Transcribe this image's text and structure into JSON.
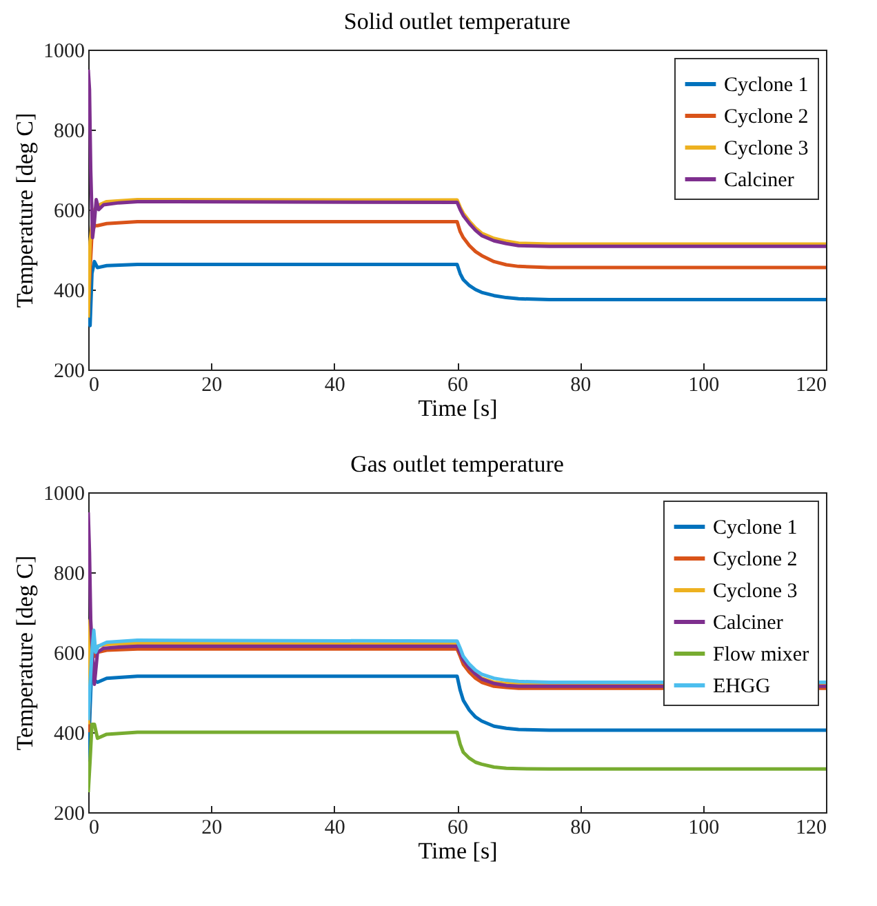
{
  "chart_data": [
    {
      "type": "line",
      "title": "Solid outlet temperature",
      "xlabel": "Time [s]",
      "ylabel": "Temperature [deg C]",
      "xlim": [
        0,
        120
      ],
      "ylim": [
        200,
        1000
      ],
      "xticks": [
        0,
        20,
        40,
        60,
        80,
        100,
        120
      ],
      "yticks": [
        200,
        400,
        600,
        800,
        1000
      ],
      "legend": "top right",
      "series": [
        {
          "name": "Cyclone 1",
          "color": "#0072bd",
          "x": [
            0,
            0.3,
            0.6,
            1,
            1.5,
            3,
            8,
            60,
            60.5,
            61,
            62,
            63,
            64,
            66,
            68,
            70,
            75,
            120
          ],
          "values": [
            330,
            310,
            440,
            470,
            455,
            460,
            463,
            463,
            440,
            425,
            410,
            400,
            393,
            385,
            380,
            377,
            375,
            375
          ]
        },
        {
          "name": "Cyclone 2",
          "color": "#d95319",
          "x": [
            0,
            0.3,
            0.6,
            1,
            1.5,
            3,
            8,
            60,
            60.5,
            61,
            62,
            63,
            64,
            66,
            68,
            70,
            75,
            120
          ],
          "values": [
            340,
            450,
            540,
            560,
            560,
            565,
            570,
            570,
            545,
            530,
            510,
            495,
            485,
            470,
            462,
            458,
            455,
            455
          ]
        },
        {
          "name": "Cyclone 3",
          "color": "#edb120",
          "x": [
            0,
            0.3,
            0.6,
            1,
            1.5,
            3,
            8,
            60,
            60.5,
            61,
            62,
            63,
            64,
            66,
            68,
            70,
            75,
            120
          ],
          "values": [
            330,
            520,
            560,
            600,
            610,
            620,
            625,
            624,
            606,
            591,
            571,
            554,
            541,
            528,
            521,
            516,
            514,
            514
          ]
        },
        {
          "name": "Calciner",
          "color": "#7e2f8e",
          "x": [
            0,
            0.2,
            0.4,
            0.7,
            1,
            1.3,
            1.7,
            2.5,
            5,
            8,
            60,
            60.5,
            61,
            62,
            63,
            64,
            66,
            68,
            70,
            75,
            120
          ],
          "values": [
            950,
            900,
            700,
            530,
            570,
            625,
            600,
            612,
            617,
            620,
            618,
            600,
            585,
            565,
            548,
            535,
            522,
            515,
            510,
            508,
            508
          ]
        }
      ]
    },
    {
      "type": "line",
      "title": "Gas outlet temperature",
      "xlabel": "Time [s]",
      "ylabel": "Temperature [deg C]",
      "xlim": [
        0,
        120
      ],
      "ylim": [
        200,
        1000
      ],
      "xticks": [
        0,
        20,
        40,
        60,
        80,
        100,
        120
      ],
      "yticks": [
        200,
        400,
        600,
        800,
        1000
      ],
      "legend": "top right",
      "series": [
        {
          "name": "Cyclone 1",
          "color": "#0072bd",
          "x": [
            0,
            0.3,
            0.6,
            1,
            1.5,
            3,
            8,
            60,
            60.5,
            61,
            62,
            63,
            64,
            66,
            68,
            70,
            75,
            120
          ],
          "values": [
            330,
            460,
            580,
            530,
            525,
            535,
            540,
            540,
            505,
            480,
            455,
            438,
            428,
            415,
            410,
            407,
            405,
            405
          ]
        },
        {
          "name": "Cyclone 2",
          "color": "#d95319",
          "x": [
            0,
            0.3,
            0.6,
            1,
            1.5,
            3,
            8,
            60,
            60.5,
            61,
            62,
            63,
            64,
            66,
            68,
            70,
            75,
            120
          ],
          "values": [
            400,
            560,
            600,
            590,
            600,
            605,
            608,
            608,
            590,
            570,
            550,
            535,
            525,
            515,
            512,
            510,
            510,
            510
          ]
        },
        {
          "name": "Cyclone 3",
          "color": "#edb120",
          "x": [
            0,
            0.3,
            0.6,
            1,
            1.5,
            3,
            8,
            60,
            60.5,
            61,
            62,
            63,
            64,
            66,
            68,
            70,
            75,
            120
          ],
          "values": [
            420,
            680,
            620,
            610,
            615,
            620,
            622,
            620,
            600,
            580,
            560,
            545,
            535,
            525,
            522,
            520,
            520,
            520
          ]
        },
        {
          "name": "Calciner",
          "color": "#7e2f8e",
          "x": [
            0,
            0.2,
            0.4,
            0.7,
            1,
            1.5,
            2.5,
            5,
            8,
            60,
            60.5,
            61,
            62,
            63,
            64,
            66,
            68,
            70,
            75,
            120
          ],
          "values": [
            950,
            850,
            680,
            590,
            520,
            600,
            610,
            613,
            615,
            615,
            598,
            580,
            560,
            545,
            533,
            522,
            517,
            515,
            515,
            515
          ]
        },
        {
          "name": "Flow mixer",
          "color": "#77ac30",
          "x": [
            0,
            0.3,
            0.6,
            1,
            1.5,
            3,
            8,
            60,
            60.5,
            61,
            62,
            63,
            64,
            66,
            68,
            70,
            75,
            120
          ],
          "values": [
            250,
            330,
            420,
            420,
            385,
            395,
            400,
            400,
            370,
            350,
            335,
            325,
            320,
            313,
            310,
            309,
            308,
            308
          ]
        },
        {
          "name": "EHGG",
          "color": "#4dbeee",
          "x": [
            0,
            0.3,
            0.6,
            0.9,
            1.2,
            1.6,
            3,
            8,
            60,
            60.5,
            61,
            62,
            63,
            64,
            66,
            68,
            70,
            75,
            120
          ],
          "values": [
            430,
            520,
            600,
            655,
            600,
            615,
            625,
            630,
            628,
            610,
            590,
            570,
            555,
            545,
            535,
            530,
            527,
            525,
            525
          ]
        }
      ]
    }
  ]
}
